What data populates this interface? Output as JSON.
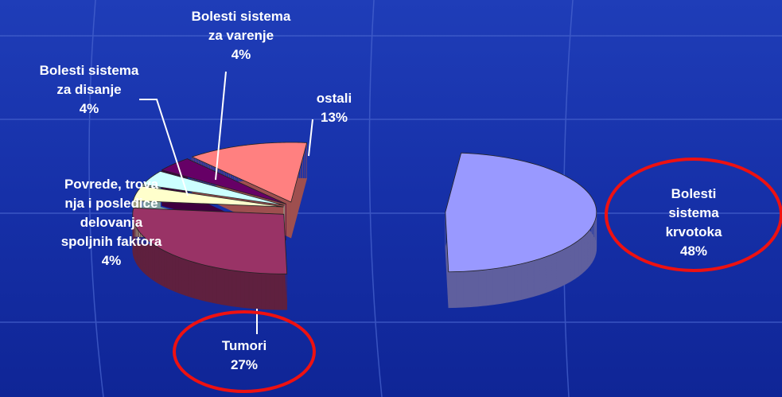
{
  "chart_data": {
    "type": "pie3d",
    "categories": [
      "Bolesti sistema\nkrvotoka",
      "Tumori",
      "Povrede, trova\nnja i posledice\ndelovanja\nspoljnih faktora",
      "Bolesti sistema\nza disanje",
      "Bolesti sistema\nza varenje",
      "ostali"
    ],
    "values": [
      48,
      27,
      4,
      4,
      4,
      13
    ],
    "value_labels": [
      "48%",
      "27%",
      "4%",
      "4%",
      "4%",
      "13%"
    ],
    "colors": [
      "#9999ff",
      "#993366",
      "#ffffcc",
      "#ccffff",
      "#660066",
      "#ff8080"
    ]
  }
}
